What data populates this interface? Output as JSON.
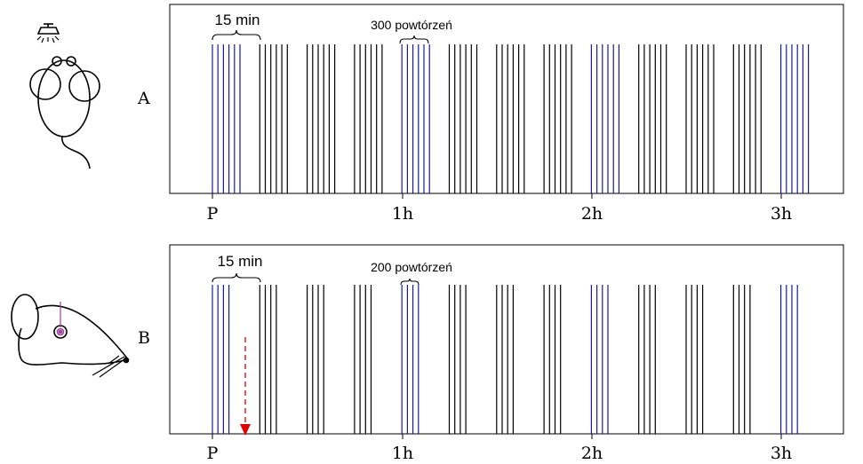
{
  "panels": [
    {
      "id": "A",
      "label": "A",
      "interval_label": "15 min",
      "repeat_label": "300 powtórzeń",
      "axis_ticks": [
        "P",
        "1h",
        "2h",
        "3h"
      ],
      "lines_per_block": 6,
      "blue_blocks": [
        0,
        4,
        8,
        12
      ],
      "total_blocks": 13,
      "has_red_arrow": false
    },
    {
      "id": "B",
      "label": "B",
      "interval_label": "15 min",
      "repeat_label": "200 powtórzeń",
      "axis_ticks": [
        "P",
        "1h",
        "2h",
        "3h"
      ],
      "lines_per_block": 4,
      "blue_blocks": [
        0,
        4,
        8,
        12
      ],
      "total_blocks": 13,
      "has_red_arrow": true
    }
  ],
  "colors": {
    "stimulus_black": "#000000",
    "stimulus_blue": "#1a1aa0",
    "arrow_red": "#e00000",
    "electrode_purple": "#a040a0"
  },
  "icons": {
    "panel_A": "mouse-top-view-with-lamp-icon",
    "panel_B": "mouse-side-view-with-electrode-icon"
  }
}
